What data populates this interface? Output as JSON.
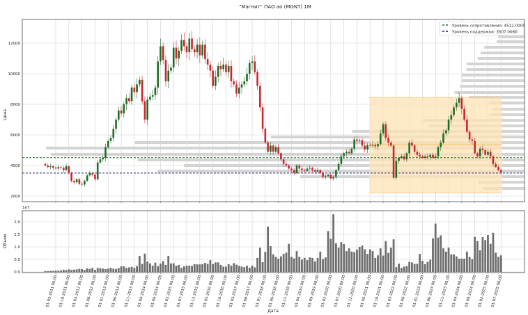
{
  "chart_data": [
    {
      "type": "candlestick",
      "title": "\"Магнит\" ПАО ао (MGNT) 1M",
      "ylabel": "Цена",
      "ylim": [
        1500,
        13400
      ],
      "yticks": [
        "2000",
        "4000",
        "6000",
        "8000",
        "10000",
        "12000"
      ],
      "ytick_values": [
        2000,
        4000,
        6000,
        8000,
        10000,
        12000
      ],
      "grid": true,
      "first_candle": "01-01-2011",
      "frequency": "1M",
      "colors": {
        "up": "#1f6b24",
        "down": "#c8262e",
        "resistance": "#2f6b2f",
        "support": "#1c1c7c",
        "zone_fill": "#fde3b5",
        "zone_edge": "#e8a32a",
        "profile": "#d4d4d4"
      },
      "legend": {
        "placement": "top-right",
        "items": [
          {
            "label": "Уровень сопротивления: 4512.0000",
            "color": "#2f6b2f"
          },
          {
            "label": "Уровень поддержки: 3507.0080",
            "color": "#1c1c7c"
          }
        ]
      },
      "resistance": 4512.0,
      "support": 3507.008,
      "zone": {
        "start": "01-05-2021",
        "end": "01-07-2025",
        "high": 8450,
        "low": 2200,
        "mid": 5350
      },
      "volume_profile": [
        {
          "price": 12410,
          "rel_volume": 0.055
        },
        {
          "price": 12090,
          "rel_volume": 0.058
        },
        {
          "price": 11730,
          "rel_volume": 0.084
        },
        {
          "price": 11360,
          "rel_volume": 0.092
        },
        {
          "price": 11000,
          "rel_volume": 0.098
        },
        {
          "price": 10640,
          "rel_volume": 0.121
        },
        {
          "price": 10270,
          "rel_volume": 0.121
        },
        {
          "price": 9910,
          "rel_volume": 0.132
        },
        {
          "price": 9545,
          "rel_volume": 0.132
        },
        {
          "price": 9180,
          "rel_volume": 0.135
        },
        {
          "price": 8770,
          "rel_volume": 0.146
        },
        {
          "price": 8450,
          "rel_volume": 0.116
        },
        {
          "price": 8090,
          "rel_volume": 0.073
        },
        {
          "price": 7680,
          "rel_volume": 0.066
        },
        {
          "price": 7320,
          "rel_volume": 0.073
        },
        {
          "price": 6950,
          "rel_volume": 0.213
        },
        {
          "price": 6590,
          "rel_volume": 0.2
        },
        {
          "price": 6230,
          "rel_volume": 0.36
        },
        {
          "price": 5860,
          "rel_volume": 0.53
        },
        {
          "price": 5500,
          "rel_volume": 0.814
        },
        {
          "price": 5140,
          "rel_volume": 1.0
        },
        {
          "price": 4730,
          "rel_volume": 0.99
        },
        {
          "price": 4360,
          "rel_volume": 0.808
        },
        {
          "price": 4000,
          "rel_volume": 0.712
        },
        {
          "price": 3640,
          "rel_volume": 0.767
        },
        {
          "price": 3270,
          "rel_volume": 0.469
        },
        {
          "price": 2910,
          "rel_volume": 0.096
        },
        {
          "price": 2500,
          "rel_volume": 0.086
        }
      ],
      "closes": [
        4000,
        3900,
        3950,
        3850,
        3800,
        3900,
        3850,
        3700,
        3950,
        3500,
        3000,
        2900,
        3100,
        2800,
        2750,
        3000,
        3350,
        3500,
        3400,
        3100,
        4200,
        4400,
        4500,
        5200,
        5600,
        5800,
        6400,
        7000,
        7600,
        7400,
        8000,
        8400,
        8200,
        9100,
        8800,
        9300,
        9600,
        8200,
        7000,
        8300,
        8500,
        8600,
        9100,
        10800,
        11800,
        10900,
        9500,
        10200,
        10400,
        11700,
        11000,
        11500,
        12200,
        11800,
        11400,
        12300,
        11600,
        11400,
        11900,
        11200,
        11900,
        10950,
        10600,
        10200,
        9200,
        9800,
        10500,
        10300,
        10600,
        10100,
        10500,
        9500,
        9300,
        8700,
        9100,
        9300,
        9500,
        10000,
        10700,
        10800,
        10100,
        9200,
        7800,
        6400,
        5500,
        4900,
        5300,
        4900,
        5200,
        4800,
        4400,
        4100,
        4000,
        3800,
        3700,
        3500,
        4000,
        3800,
        3700,
        3650,
        3800,
        3850,
        3700,
        3600,
        3700,
        3500,
        3250,
        3300,
        3400,
        3150,
        3250,
        3700,
        4100,
        4600,
        4800,
        4900,
        4800,
        5100,
        5700,
        5600,
        5650,
        5300,
        5050,
        5350,
        5300,
        5350,
        5250,
        5400,
        6100,
        6700,
        5800,
        5500,
        5300,
        3200,
        4300,
        4500,
        4600,
        4400,
        4800,
        5500,
        5300,
        4900,
        4700,
        4600,
        4500,
        4600,
        4550,
        4700,
        4500,
        4600,
        5200,
        5500,
        6100,
        6300,
        7000,
        7300,
        7800,
        8100,
        8400,
        7700,
        7000,
        6200,
        5700,
        5600,
        4800,
        4600,
        5100,
        5000,
        4700,
        4900,
        4600,
        4100,
        3900,
        3700,
        3550
      ],
      "first_open": 4100
    },
    {
      "type": "bar",
      "ylabel": "Объем",
      "scale_label": "1e7",
      "xlabel": "Дата",
      "ylim": [
        0,
        2.45
      ],
      "yticks": [
        "0.0",
        "0.5",
        "1.0",
        "1.5",
        "2.0"
      ],
      "ytick_values": [
        0,
        0.5,
        1.0,
        1.5,
        2.0
      ],
      "bar_color": "#6e6e6e",
      "xticks": [
        "01-05-2011 00:00",
        "01-10-2011 00:00",
        "01-03-2012 00:00",
        "01-08-2012 00:00",
        "01-01-2013 00:00",
        "01-06-2013 00:00",
        "01-11-2013 00:00",
        "01-04-2014 00:00",
        "01-09-2014 00:00",
        "01-02-2015 00:00",
        "01-07-2015 00:00",
        "01-12-2015 00:00",
        "01-05-2016 00:00",
        "01-10-2016 00:00",
        "01-03-2017 00:00",
        "01-08-2017 00:00",
        "01-01-2018 00:00",
        "01-06-2018 00:00",
        "01-11-2018 00:00",
        "01-04-2019 00:00",
        "01-09-2019 00:00",
        "01-02-2020 00:00",
        "01-07-2020 00:00",
        "01-12-2020 00:00",
        "01-05-2021 00:00",
        "01-10-2021 00:00",
        "01-03-2022 00:00",
        "01-08-2022 00:00",
        "01-01-2023 00:00",
        "01-06-2023 00:00",
        "01-11-2023 00:00",
        "01-04-2024 00:00",
        "01-09-2024 00:00",
        "01-02-2025 00:00",
        "01-07-2025 00:00"
      ],
      "values": [
        0.03,
        0.03,
        0.04,
        0.04,
        0.05,
        0.05,
        0.06,
        0.09,
        0.07,
        0.1,
        0.08,
        0.09,
        0.1,
        0.12,
        0.11,
        0.08,
        0.14,
        0.12,
        0.16,
        0.08,
        0.16,
        0.15,
        0.13,
        0.11,
        0.13,
        0.16,
        0.13,
        0.12,
        0.15,
        0.22,
        0.22,
        0.16,
        0.18,
        0.2,
        0.16,
        0.23,
        0.64,
        0.32,
        0.73,
        0.41,
        0.34,
        0.25,
        0.37,
        0.23,
        0.33,
        0.43,
        0.28,
        0.64,
        0.34,
        0.34,
        0.25,
        0.28,
        0.16,
        0.22,
        0.25,
        0.25,
        0.24,
        0.31,
        0.3,
        0.3,
        0.31,
        0.36,
        0.32,
        0.47,
        0.31,
        0.38,
        0.38,
        0.28,
        0.21,
        0.21,
        0.31,
        0.25,
        0.35,
        0.29,
        0.24,
        0.21,
        0.19,
        0.25,
        0.17,
        0.25,
        0.18,
        0.56,
        0.97,
        0.39,
        0.8,
        1.81,
        1.03,
        0.7,
        0.6,
        0.53,
        0.62,
        0.72,
        0.77,
        1.12,
        0.6,
        0.54,
        0.83,
        0.6,
        0.49,
        0.56,
        0.47,
        0.58,
        0.56,
        0.42,
        0.56,
        0.81,
        0.51,
        0.58,
        1.63,
        1.32,
        2.3,
        1.14,
        0.97,
        1.19,
        1.11,
        0.83,
        0.94,
        0.81,
        0.79,
        0.89,
        1.0,
        1.05,
        0.9,
        0.72,
        0.9,
        0.83,
        0.56,
        0.66,
        0.94,
        0.65,
        1.23,
        0.76,
        0.97,
        1.3,
        0.19,
        0.33,
        0.16,
        0.21,
        0.23,
        0.4,
        0.38,
        0.32,
        0.32,
        0.72,
        0.44,
        0.31,
        0.4,
        0.49,
        1.34,
        1.93,
        1.37,
        1.46,
        0.94,
        0.81,
        0.97,
        0.7,
        0.7,
        0.62,
        0.53,
        0.53,
        0.53,
        0.81,
        0.6,
        0.51,
        1.4,
        1.23,
        0.86,
        1.39,
        1.27,
        1.47,
        1.12,
        1.56,
        0.77,
        0.6,
        0.66
      ]
    }
  ]
}
